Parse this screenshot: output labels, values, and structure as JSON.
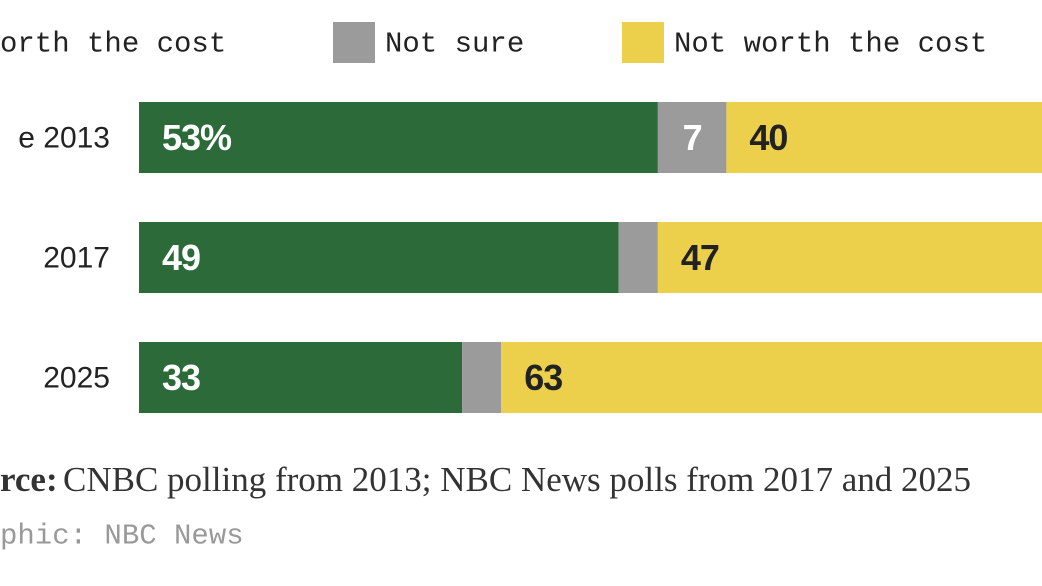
{
  "chart_data": {
    "type": "stacked-bar",
    "orientation": "horizontal",
    "categories": [
      "e 2013",
      "2017",
      "2025"
    ],
    "series": [
      {
        "name": "orth the cost",
        "color": "#2d6a3a",
        "values": [
          53,
          49,
          33
        ],
        "value_labels": [
          "53%",
          "49",
          "33"
        ]
      },
      {
        "name": "Not sure",
        "color": "#9b9b9b",
        "values": [
          7,
          4,
          4
        ],
        "value_labels": [
          "7",
          null,
          null
        ]
      },
      {
        "name": "Not worth the cost",
        "color": "#ecd04b",
        "values": [
          40,
          47,
          63
        ]
      }
    ],
    "xlim": [
      0,
      100
    ],
    "source_label": "rce:",
    "source": "CNBC polling from 2013; NBC News polls from 2017 and 2025",
    "credit": "phic: NBC News"
  }
}
